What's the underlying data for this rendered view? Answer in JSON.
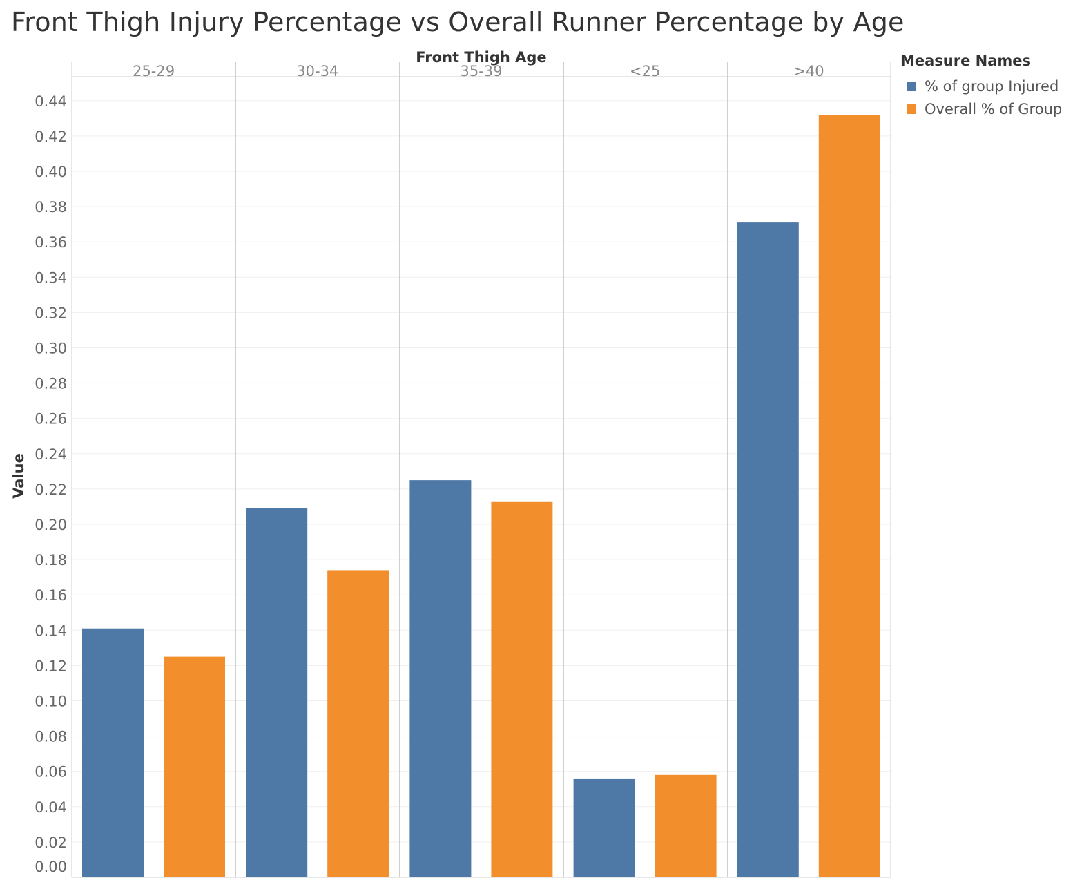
{
  "chart_data": {
    "type": "bar",
    "title": "Front Thigh Injury Percentage vs Overall Runner Percentage by Age",
    "column_header": "Front Thigh Age",
    "ylabel": "Value",
    "categories": [
      "25-29",
      "30-34",
      "35-39",
      "<25",
      ">40"
    ],
    "series": [
      {
        "name": "% of group Injured",
        "color": "#4e79a7",
        "values": [
          0.141,
          0.209,
          0.225,
          0.056,
          0.371
        ]
      },
      {
        "name": "Overall % of Group",
        "color": "#f28e2b",
        "values": [
          0.125,
          0.174,
          0.213,
          0.058,
          0.432
        ]
      }
    ],
    "ylim": [
      0,
      0.44
    ],
    "yticks": [
      "0.00",
      "0.02",
      "0.04",
      "0.06",
      "0.08",
      "0.10",
      "0.12",
      "0.14",
      "0.16",
      "0.18",
      "0.20",
      "0.22",
      "0.24",
      "0.26",
      "0.28",
      "0.30",
      "0.32",
      "0.34",
      "0.36",
      "0.38",
      "0.40",
      "0.42",
      "0.44"
    ],
    "legend": {
      "title": "Measure Names",
      "position": "right"
    },
    "grid": true
  }
}
